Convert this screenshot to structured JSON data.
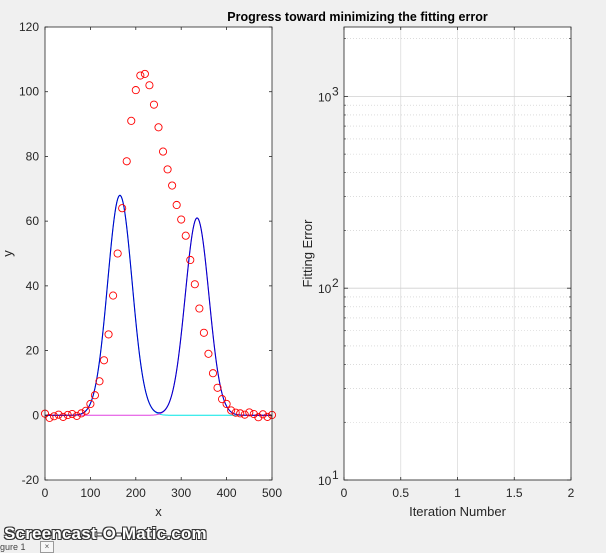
{
  "chart_data": [
    {
      "type": "scatter+line",
      "title": "",
      "xlabel": "x",
      "ylabel": "y",
      "xlim": [
        0,
        500
      ],
      "ylim": [
        -20,
        120
      ],
      "xticks": [
        0,
        100,
        200,
        300,
        400,
        500
      ],
      "yticks": [
        -20,
        0,
        20,
        40,
        60,
        80,
        100,
        120
      ],
      "grid": false,
      "data_points": {
        "x": [
          0,
          10,
          20,
          30,
          40,
          50,
          60,
          70,
          80,
          90,
          100,
          110,
          120,
          130,
          140,
          150,
          160,
          170,
          180,
          190,
          200,
          210,
          220,
          230,
          240,
          250,
          260,
          270,
          280,
          290,
          300,
          310,
          320,
          330,
          340,
          350,
          360,
          370,
          380,
          390,
          400,
          410,
          420,
          430,
          440,
          450,
          460,
          470,
          480,
          490,
          500
        ],
        "y": [
          0.5,
          -0.8,
          -0.3,
          0.2,
          -0.5,
          0.1,
          0.4,
          -0.2,
          0.6,
          1.4,
          3.5,
          6.2,
          10.5,
          17,
          25,
          37,
          50,
          64,
          78.5,
          91,
          100.5,
          105,
          105.5,
          102,
          96,
          89,
          81.5,
          76,
          71,
          65,
          60.5,
          55.5,
          48,
          40.5,
          33,
          25.5,
          19,
          13,
          8.5,
          5,
          3.5,
          1.5,
          0.8,
          0.6,
          0.2,
          0.9,
          0.4,
          -0.6,
          0.3,
          -0.5,
          0.1
        ],
        "marker_color": "#ff0000"
      },
      "series": [
        {
          "kind": "gaussian",
          "amplitude": 68,
          "center": 165,
          "sigma": 38,
          "color": "#00e5e5"
        },
        {
          "kind": "gaussian",
          "amplitude": 61,
          "center": 335,
          "sigma": 37,
          "color": "#e040e0"
        },
        {
          "kind": "sum",
          "color": "#0000cc"
        }
      ]
    },
    {
      "type": "line",
      "title": "Progress toward minimizing the fitting error",
      "xlabel": "Iteration Number",
      "ylabel": "Fitting Error",
      "xlim": [
        0,
        2
      ],
      "ylim": [
        10,
        2300
      ],
      "yscale": "log",
      "xticks": [
        0,
        0.5,
        1,
        1.5,
        2
      ],
      "xtick_labels": [
        "0",
        "0.5",
        "1",
        "1.5",
        "2"
      ],
      "ytick_exponents": [
        "1",
        "2",
        "3"
      ],
      "ytick_base": "10",
      "grid": true,
      "values": []
    }
  ],
  "watermark": "Screencast-O-Matic.com",
  "figure_tab": "gure 1",
  "tab_close": "×"
}
